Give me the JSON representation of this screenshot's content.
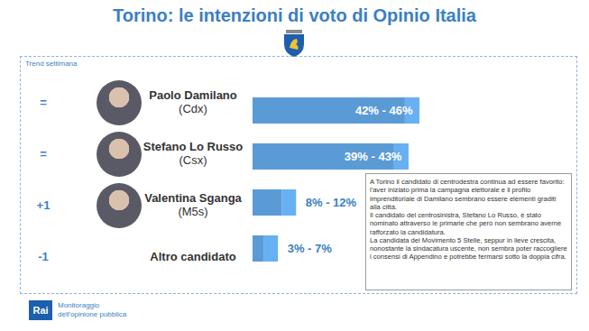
{
  "chart_data": {
    "type": "bar",
    "orientation": "horizontal",
    "title": "Torino: le intenzioni di voto di Opinio Italia",
    "trend_title": "Trend settimana",
    "categories": [
      "Paolo Damilano",
      "Stefano Lo Russo",
      "Valentina Sganga",
      "Altro candidato"
    ],
    "parties": [
      "(Cdx)",
      "(Csx)",
      "(M5s)",
      null
    ],
    "trend": [
      "=",
      "=",
      "+1",
      "-1"
    ],
    "lows": [
      42,
      39,
      8,
      3
    ],
    "values": [
      46,
      43,
      12,
      7
    ],
    "value_labels": [
      "42% - 46%",
      "39% - 43%",
      "8% - 12%",
      "3% - 7%"
    ],
    "data_labels": true,
    "color": "#5b9bd5",
    "xlim": [
      0,
      46
    ],
    "tick_labels": false,
    "grid": false,
    "annotation": [
      "A Torino il candidato di centrodestra continua ad essere favorito: l'aver iniziato prima la campagna elettorale e il profilo imprenditoriale di Damilano sembrano essere elementi graditi alla città.",
      "Il candidato del centrosinistra, Stefano Lo Russo, è stato nominato attraverso le primarie che però non sembrano averne rafforzato la candidatura.",
      "La candidata del Movimento 5 Stelle, seppur in lieve crescita, nonostante la sindacatura uscente, non sembra poter raccogliere i consensi di Appendino e potrebbe fermarsi sotto la doppia cifra."
    ],
    "source": "Rai",
    "source_note": [
      "Monitoraggio",
      "dell'opinione pubblica"
    ]
  }
}
